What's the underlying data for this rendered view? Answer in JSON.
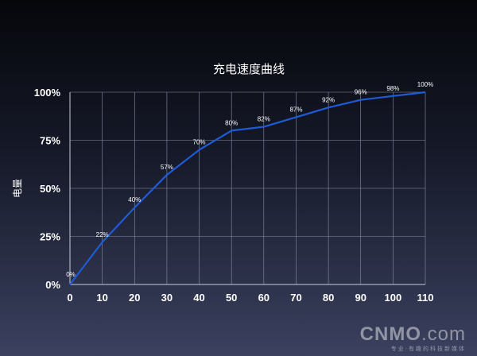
{
  "chart_data": {
    "type": "line",
    "title": "充电速度曲线",
    "xlabel": "",
    "ylabel": "电量",
    "x": [
      0,
      10,
      20,
      30,
      40,
      50,
      60,
      70,
      80,
      90,
      100,
      110
    ],
    "xlim": [
      0,
      110
    ],
    "ylim": [
      0,
      100
    ],
    "yticks": [
      0,
      25,
      50,
      75,
      100
    ],
    "ytick_labels": [
      "0%",
      "25%",
      "50%",
      "75%",
      "100%"
    ],
    "xtick_labels": [
      "0",
      "10",
      "20",
      "30",
      "40",
      "50",
      "60",
      "70",
      "80",
      "90",
      "100",
      "110"
    ],
    "series": [
      {
        "values": [
          0,
          22,
          40,
          57,
          70,
          80,
          82,
          87,
          92,
          96,
          98,
          100
        ],
        "labels": [
          "0%",
          "22%",
          "40%",
          "57%",
          "70%",
          "80%",
          "82%",
          "87%",
          "92%",
          "96%",
          "98%",
          "100%"
        ],
        "color": "#1f5bd6"
      }
    ],
    "grid": true,
    "grid_color": "#8a8fa6",
    "axis_color": "#c9ccd8"
  },
  "watermark": {
    "logo_main": "CNMO",
    "logo_dot": ".com",
    "slogan": "专业·有趣的科技新媒体"
  }
}
